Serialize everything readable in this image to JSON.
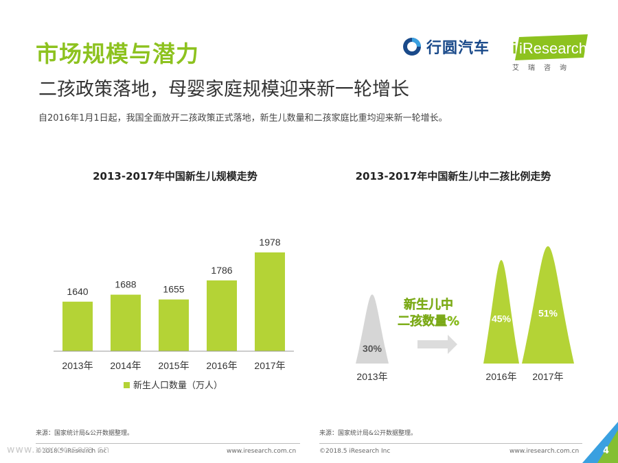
{
  "header": {
    "title": "市场规模与潜力",
    "subtitle": "二孩政策落地，母婴家庭规模迎来新一轮增长",
    "description": "自2016年1月1日起，我国全面放开二孩政策正式落地，新生儿数量和二孩家庭比重均迎来新一轮增长。"
  },
  "logos": {
    "xingyuan": "行圆汽车",
    "iresearch": "iResearch",
    "iresearch_sub": "艾瑞咨询"
  },
  "colors": {
    "brand_green": "#8dc21f",
    "bar_green": "#b4d336",
    "grey_peak": "#d6d6d6",
    "arrow_grey": "#dcdcdc",
    "accent_blue": "#1a4a8a"
  },
  "chart_data": [
    {
      "type": "bar",
      "title": "2013-2017年中国新生儿规模走势",
      "categories": [
        "2013年",
        "2014年",
        "2015年",
        "2016年",
        "2017年"
      ],
      "series": [
        {
          "name": "新生人口数量（万人）",
          "values": [
            1640,
            1688,
            1655,
            1786,
            1978
          ]
        }
      ],
      "data_labels": [
        "1640",
        "1688",
        "1655",
        "1786",
        "1978"
      ],
      "legend": "bottom",
      "grid": false
    },
    {
      "type": "area",
      "title": "2013-2017年中国新生儿中二孩比例走势",
      "categories": [
        "2013年",
        "2016年",
        "2017年"
      ],
      "values": [
        0.3,
        0.45,
        0.51
      ],
      "data_labels": [
        "30%",
        "45%",
        "51%"
      ],
      "annotation": [
        "新生儿中",
        "二孩数量%"
      ]
    }
  ],
  "footer": {
    "left_source": "来源：国家统计局&公开数据整理。",
    "right_source": "来源：国家统计局&公开数据整理。",
    "left_copyright": "©2018.5 iResearch Inc",
    "left_url": "www.iresearch.com.cn",
    "right_copyright": "©2018.5 iResearch Inc",
    "right_url": "www.iresearch.com.cn",
    "page_number": "4",
    "watermark": "www.xxxxx.com.cn"
  }
}
